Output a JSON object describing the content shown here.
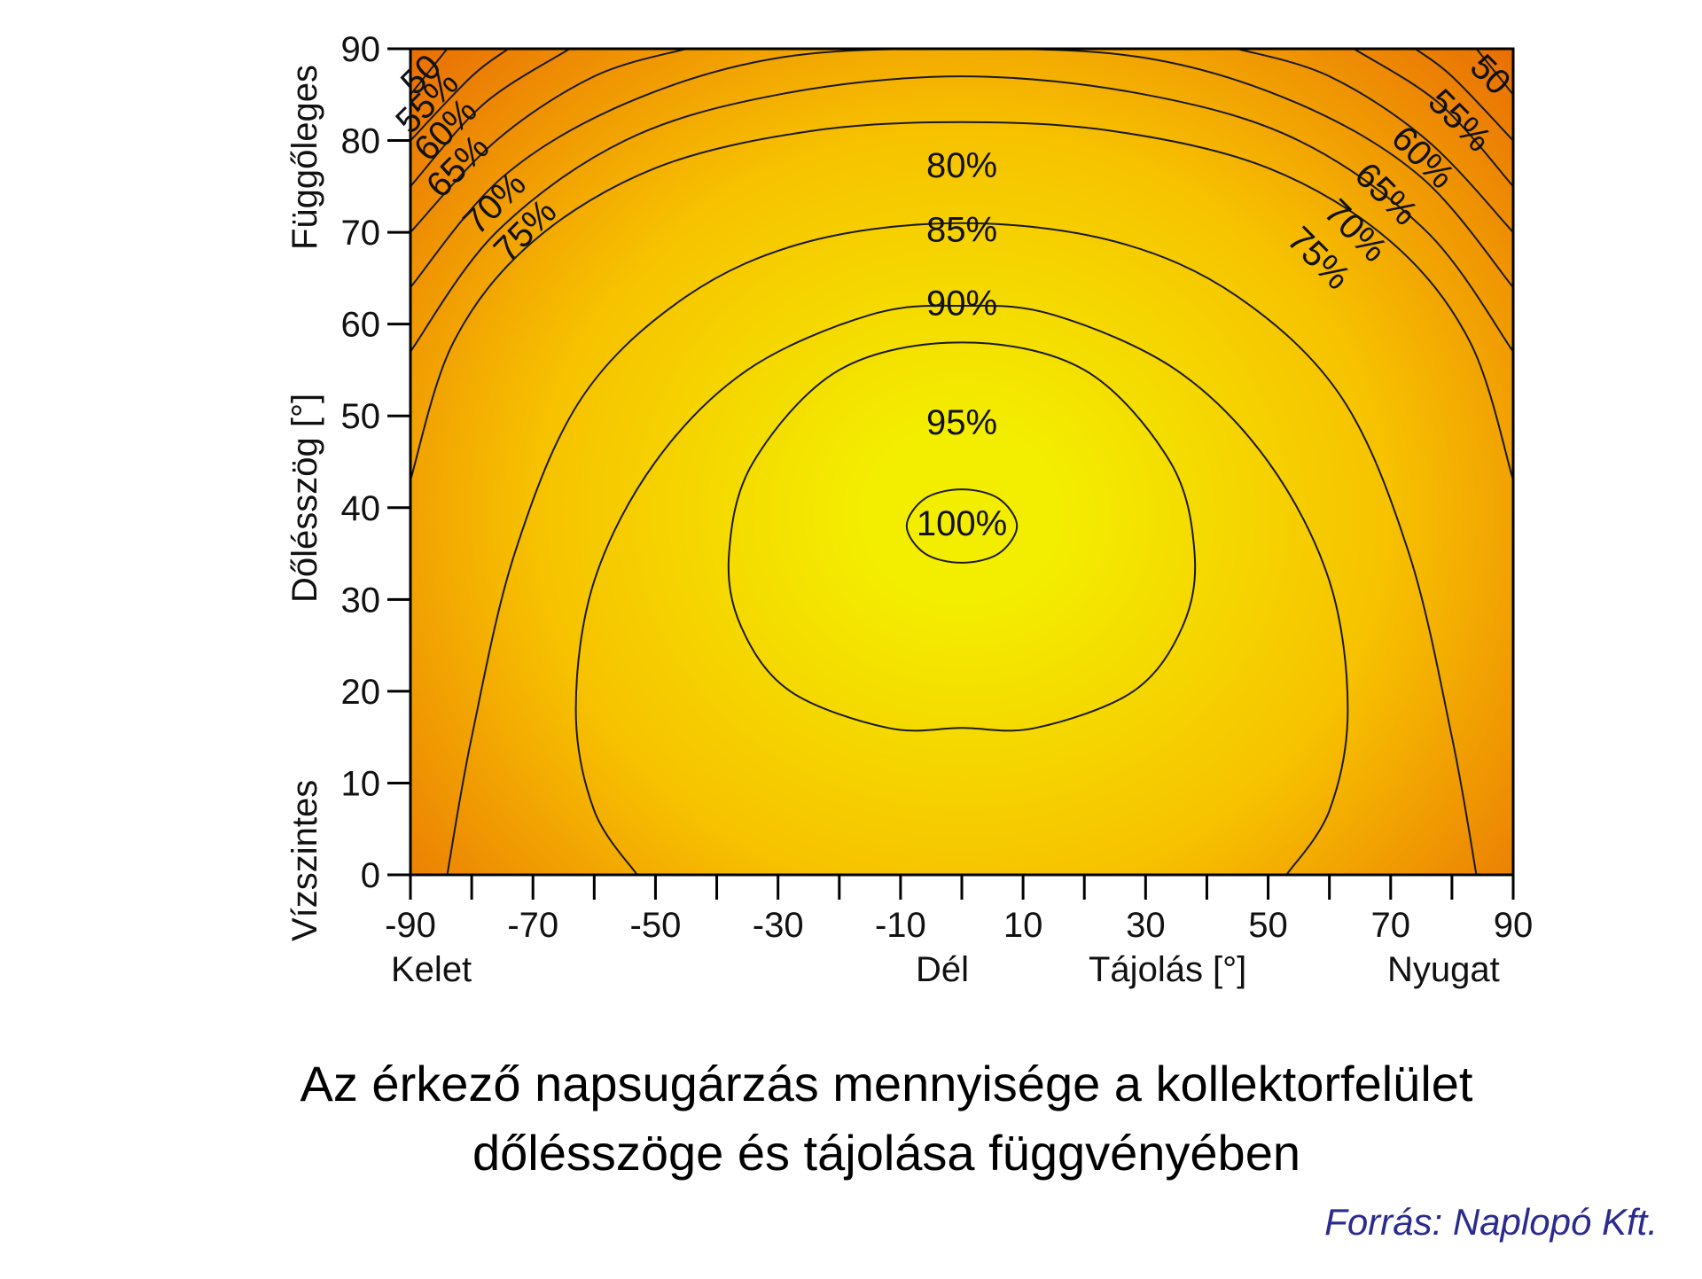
{
  "colors": {
    "high": "#f3ee00",
    "mid": "#f7c200",
    "low": "#e86a05",
    "line": "#1a1a1a",
    "source": "#2b2b8e"
  },
  "chart_data": {
    "type": "heatmap",
    "subtype": "contour",
    "title": "",
    "xlabel": "Tájolás [°]",
    "ylabel": "Dőlésszög [°]",
    "xlim": [
      -90,
      90
    ],
    "ylim": [
      0,
      90
    ],
    "x_ticks": [
      -90,
      -80,
      -70,
      -60,
      -50,
      -40,
      -30,
      -20,
      -10,
      0,
      10,
      20,
      30,
      40,
      50,
      60,
      70,
      80,
      90
    ],
    "x_tick_labels": [
      "-90",
      "-70",
      "-50",
      "-30",
      "-10",
      "10",
      "30",
      "50",
      "70",
      "90"
    ],
    "y_ticks": [
      0,
      10,
      20,
      30,
      40,
      50,
      60,
      70,
      80,
      90
    ],
    "y_tick_labels": [
      "0",
      "10",
      "20",
      "30",
      "40",
      "50",
      "60",
      "70",
      "80",
      "90"
    ],
    "x_direction_labels": [
      "Kelet",
      "Dél",
      "Nyugat"
    ],
    "y_direction_labels": [
      "Vízszintes",
      "Függőleges"
    ],
    "levels": [
      {
        "value": 100,
        "label": "100%",
        "label_at": [
          0,
          38
        ]
      },
      {
        "value": 95,
        "label": "95%",
        "label_at": [
          0,
          49
        ]
      },
      {
        "value": 90,
        "label": "90%",
        "label_at": [
          0,
          62
        ]
      },
      {
        "value": 85,
        "label": "85%",
        "label_at": [
          0,
          70
        ]
      },
      {
        "value": 80,
        "label": "80%",
        "label_at": [
          0,
          77
        ]
      },
      {
        "value": 75,
        "label": "75%",
        "labels_at": [
          [
            -71,
            70
          ],
          [
            58,
            67
          ]
        ]
      },
      {
        "value": 70,
        "label": "70%",
        "labels_at": [
          [
            -76,
            73
          ],
          [
            64,
            70
          ]
        ]
      },
      {
        "value": 65,
        "label": "65%",
        "labels_at": [
          [
            -82,
            77
          ],
          [
            69,
            74
          ]
        ]
      },
      {
        "value": 60,
        "label": "60%",
        "labels_at": [
          [
            -84,
            81
          ],
          [
            75,
            78
          ]
        ]
      },
      {
        "value": 55,
        "label": "55%",
        "labels_at": [
          [
            -87,
            84
          ],
          [
            81,
            82
          ]
        ]
      },
      {
        "value": 50,
        "label": "50",
        "labels_at": [
          [
            -88,
            87
          ],
          [
            86,
            87
          ]
        ]
      }
    ],
    "contours": [
      {
        "level": 100,
        "closed": true,
        "points": [
          [
            0,
            42
          ],
          [
            6,
            41
          ],
          [
            9,
            38
          ],
          [
            6,
            35
          ],
          [
            0,
            34
          ],
          [
            -6,
            35
          ],
          [
            -9,
            38
          ],
          [
            -6,
            41
          ]
        ]
      },
      {
        "level": 95,
        "closed": true,
        "points": [
          [
            0,
            58
          ],
          [
            20,
            55
          ],
          [
            34,
            45
          ],
          [
            38,
            35
          ],
          [
            36,
            27
          ],
          [
            28,
            20
          ],
          [
            12,
            16
          ],
          [
            0,
            16
          ],
          [
            -12,
            16
          ],
          [
            -28,
            20
          ],
          [
            -36,
            27
          ],
          [
            -38,
            35
          ],
          [
            -34,
            45
          ],
          [
            -20,
            55
          ]
        ]
      },
      {
        "level": 90,
        "closed": false,
        "points": [
          [
            -53,
            0
          ],
          [
            -60,
            7
          ],
          [
            -63,
            18
          ],
          [
            -60,
            32
          ],
          [
            -50,
            45
          ],
          [
            -35,
            55
          ],
          [
            -15,
            61
          ],
          [
            0,
            62
          ],
          [
            15,
            61
          ],
          [
            35,
            55
          ],
          [
            50,
            45
          ],
          [
            60,
            32
          ],
          [
            63,
            18
          ],
          [
            60,
            7
          ],
          [
            53,
            0
          ]
        ]
      },
      {
        "level": 85,
        "closed": false,
        "points": [
          [
            -84,
            0
          ],
          [
            -80,
            15
          ],
          [
            -73,
            35
          ],
          [
            -62,
            52
          ],
          [
            -45,
            63
          ],
          [
            -25,
            69
          ],
          [
            0,
            71
          ],
          [
            25,
            69
          ],
          [
            45,
            63
          ],
          [
            62,
            52
          ],
          [
            73,
            35
          ],
          [
            80,
            15
          ],
          [
            84,
            0
          ]
        ]
      },
      {
        "level": 80,
        "closed": false,
        "points": [
          [
            -90,
            43
          ],
          [
            -83,
            58
          ],
          [
            -70,
            69
          ],
          [
            -50,
            77
          ],
          [
            -25,
            81
          ],
          [
            0,
            82
          ],
          [
            25,
            81
          ],
          [
            50,
            77
          ],
          [
            70,
            69
          ],
          [
            83,
            58
          ],
          [
            90,
            43
          ]
        ]
      },
      {
        "level": 75,
        "closed": false,
        "points": [
          [
            -90,
            57
          ],
          [
            -76,
            70
          ],
          [
            -55,
            80
          ],
          [
            -30,
            85
          ],
          [
            0,
            87
          ],
          [
            30,
            85
          ],
          [
            55,
            80
          ],
          [
            76,
            70
          ],
          [
            90,
            57
          ]
        ]
      },
      {
        "level": 70,
        "closed": false,
        "points": [
          [
            -90,
            64
          ],
          [
            -75,
            76
          ],
          [
            -55,
            84
          ],
          [
            -30,
            89
          ],
          [
            0,
            90
          ],
          [
            30,
            89
          ],
          [
            55,
            84
          ],
          [
            75,
            76
          ],
          [
            90,
            64
          ]
        ]
      },
      {
        "level": 65,
        "closed": false,
        "points": [
          [
            -90,
            70
          ],
          [
            -76,
            80
          ],
          [
            -60,
            87
          ],
          [
            -45,
            90
          ]
        ]
      },
      {
        "level": 65,
        "closed": false,
        "points": [
          [
            45,
            90
          ],
          [
            60,
            87
          ],
          [
            76,
            80
          ],
          [
            90,
            70
          ]
        ]
      },
      {
        "level": 60,
        "closed": false,
        "points": [
          [
            -90,
            75
          ],
          [
            -78,
            84
          ],
          [
            -64,
            90
          ]
        ]
      },
      {
        "level": 60,
        "closed": false,
        "points": [
          [
            64,
            90
          ],
          [
            78,
            84
          ],
          [
            90,
            75
          ]
        ]
      },
      {
        "level": 55,
        "closed": false,
        "points": [
          [
            -90,
            80
          ],
          [
            -80,
            87
          ],
          [
            -74,
            90
          ]
        ]
      },
      {
        "level": 55,
        "closed": false,
        "points": [
          [
            74,
            90
          ],
          [
            80,
            87
          ],
          [
            90,
            80
          ]
        ]
      },
      {
        "level": 50,
        "closed": false,
        "points": [
          [
            -90,
            85
          ],
          [
            -84,
            90
          ]
        ]
      },
      {
        "level": 50,
        "closed": false,
        "points": [
          [
            84,
            90
          ],
          [
            90,
            85
          ]
        ]
      }
    ]
  },
  "caption": {
    "line1": "Az érkező napsugárzás mennyisége a kollektorfelület",
    "line2": "dőlésszöge és tájolása függvényében"
  },
  "source": "Forrás: Naplopó Kft."
}
